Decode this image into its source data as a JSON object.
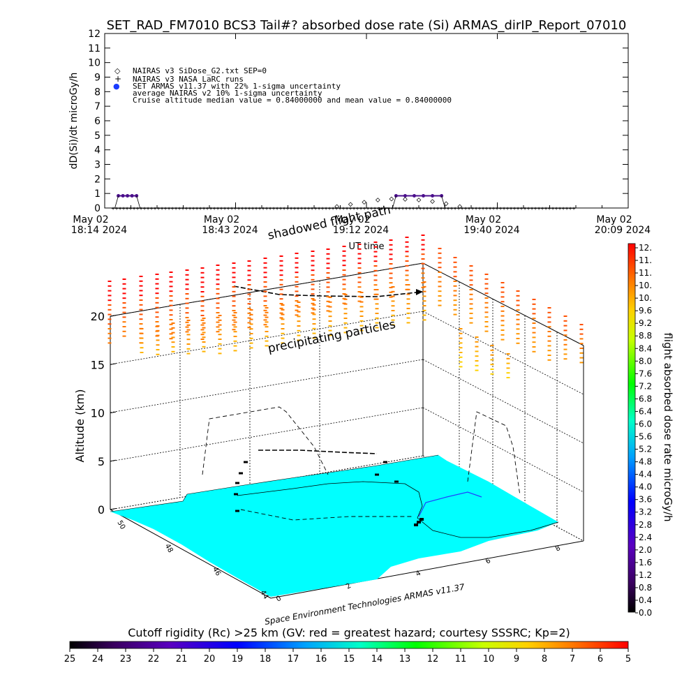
{
  "title": "SET_RAD_FM7010  BCS3 Tail#? absorbed dose rate (Si) ARMAS_dirIP_Report_07010",
  "chart_data": [
    {
      "type": "line",
      "title": "SET_RAD_FM7010  BCS3 Tail#? absorbed dose rate (Si) ARMAS_dirIP_Report_07010",
      "xlabel": "UT time",
      "ylabel": "dD(Si)/dt microGy/h",
      "ylim": [
        0,
        12
      ],
      "y_ticks": [
        "0",
        "1",
        "2",
        "3",
        "4",
        "5",
        "6",
        "7",
        "8",
        "9",
        "10",
        "11",
        "12"
      ],
      "x_ticks": [
        {
          "top": "May 02",
          "bottom": "18:14 2024"
        },
        {
          "top": "May 02",
          "bottom": "18:43 2024"
        },
        {
          "top": "May 02",
          "bottom": "19:12 2024"
        },
        {
          "top": "May 02",
          "bottom": "19:40 2024"
        },
        {
          "top": "May 02",
          "bottom": "20:09 2024"
        }
      ],
      "grid": false,
      "legend": [
        {
          "symbol": "◇",
          "text": "NAIRAS v3 SiDose_G2.txt SEP=0"
        },
        {
          "symbol": "+",
          "text": "NAIRAS v3 NASA LaRC runs"
        },
        {
          "symbol": "●",
          "text": "SET ARMAS v11.37 with 22% 1-sigma uncertainty"
        },
        {
          "symbol": "",
          "text": "average NAIRAS v2 10% 1-sigma uncertainty"
        },
        {
          "symbol": "",
          "text": "Cruise altitude median value = 0.84000000 and mean value = 0.84000000"
        }
      ],
      "series": [
        {
          "name": "SET ARMAS v11.37",
          "color": "#4b0f8c",
          "segments": [
            {
              "x": [
                "18:17",
                "18:18",
                "18:19",
                "18:20",
                "18:21"
              ],
              "y": [
                0.84,
                0.84,
                0.84,
                0.84,
                0.84
              ]
            },
            {
              "x": [
                "19:18",
                "19:20",
                "19:22",
                "19:24",
                "19:26",
                "19:28"
              ],
              "y": [
                0.84,
                0.84,
                0.84,
                0.84,
                0.84,
                0.84
              ]
            }
          ]
        },
        {
          "name": "NAIRAS v3 SiDose_G2.txt SEP=0",
          "color": "#000000",
          "x": [
            "19:05",
            "19:08",
            "19:11",
            "19:14",
            "19:17",
            "19:20",
            "19:23",
            "19:26",
            "19:29",
            "19:32"
          ],
          "y": [
            0.1,
            0.25,
            0.4,
            0.55,
            0.62,
            0.6,
            0.55,
            0.45,
            0.3,
            0.1
          ]
        }
      ]
    },
    {
      "type": "scatter",
      "subtype": "3d-flight-path",
      "zlabel": "Altitude (km)",
      "z_ticks": [
        "0",
        "5",
        "10",
        "15",
        "20"
      ],
      "lat_ticks": [
        "50",
        "48",
        "46",
        "44"
      ],
      "lon_ticks": [
        "0",
        "2",
        "4",
        "6",
        "8"
      ],
      "annotations": [
        "shadowed flight path",
        "precipitating particles"
      ],
      "credit": "Space Environment Technologies ARMAS v11.37",
      "map_color": "#00ffff",
      "right_colorbar": {
        "label": "flight absorbed dose rate microGy/h",
        "ticks": [
          "12.",
          "11.",
          "11.",
          "10.",
          "10.",
          "9.6",
          "9.2",
          "8.8",
          "8.4",
          "8.0",
          "7.6",
          "7.2",
          "6.8",
          "6.4",
          "6.0",
          "5.6",
          "5.2",
          "4.8",
          "4.4",
          "4.0",
          "3.6",
          "3.2",
          "2.8",
          "2.4",
          "2.0",
          "1.6",
          "1.2",
          "0.8",
          "0.4",
          "0.0"
        ]
      },
      "bottom_colorbar": {
        "label": "Cutoff rigidity (Rc) >25 km (GV: red = greatest hazard; courtesy SSSRC; Kp=2)",
        "ticks": [
          "25",
          "24",
          "23",
          "22",
          "21",
          "20",
          "19",
          "18",
          "17",
          "16",
          "15",
          "14",
          "13",
          "12",
          "11",
          "10",
          "9",
          "8",
          "7",
          "6",
          "5"
        ]
      }
    }
  ]
}
